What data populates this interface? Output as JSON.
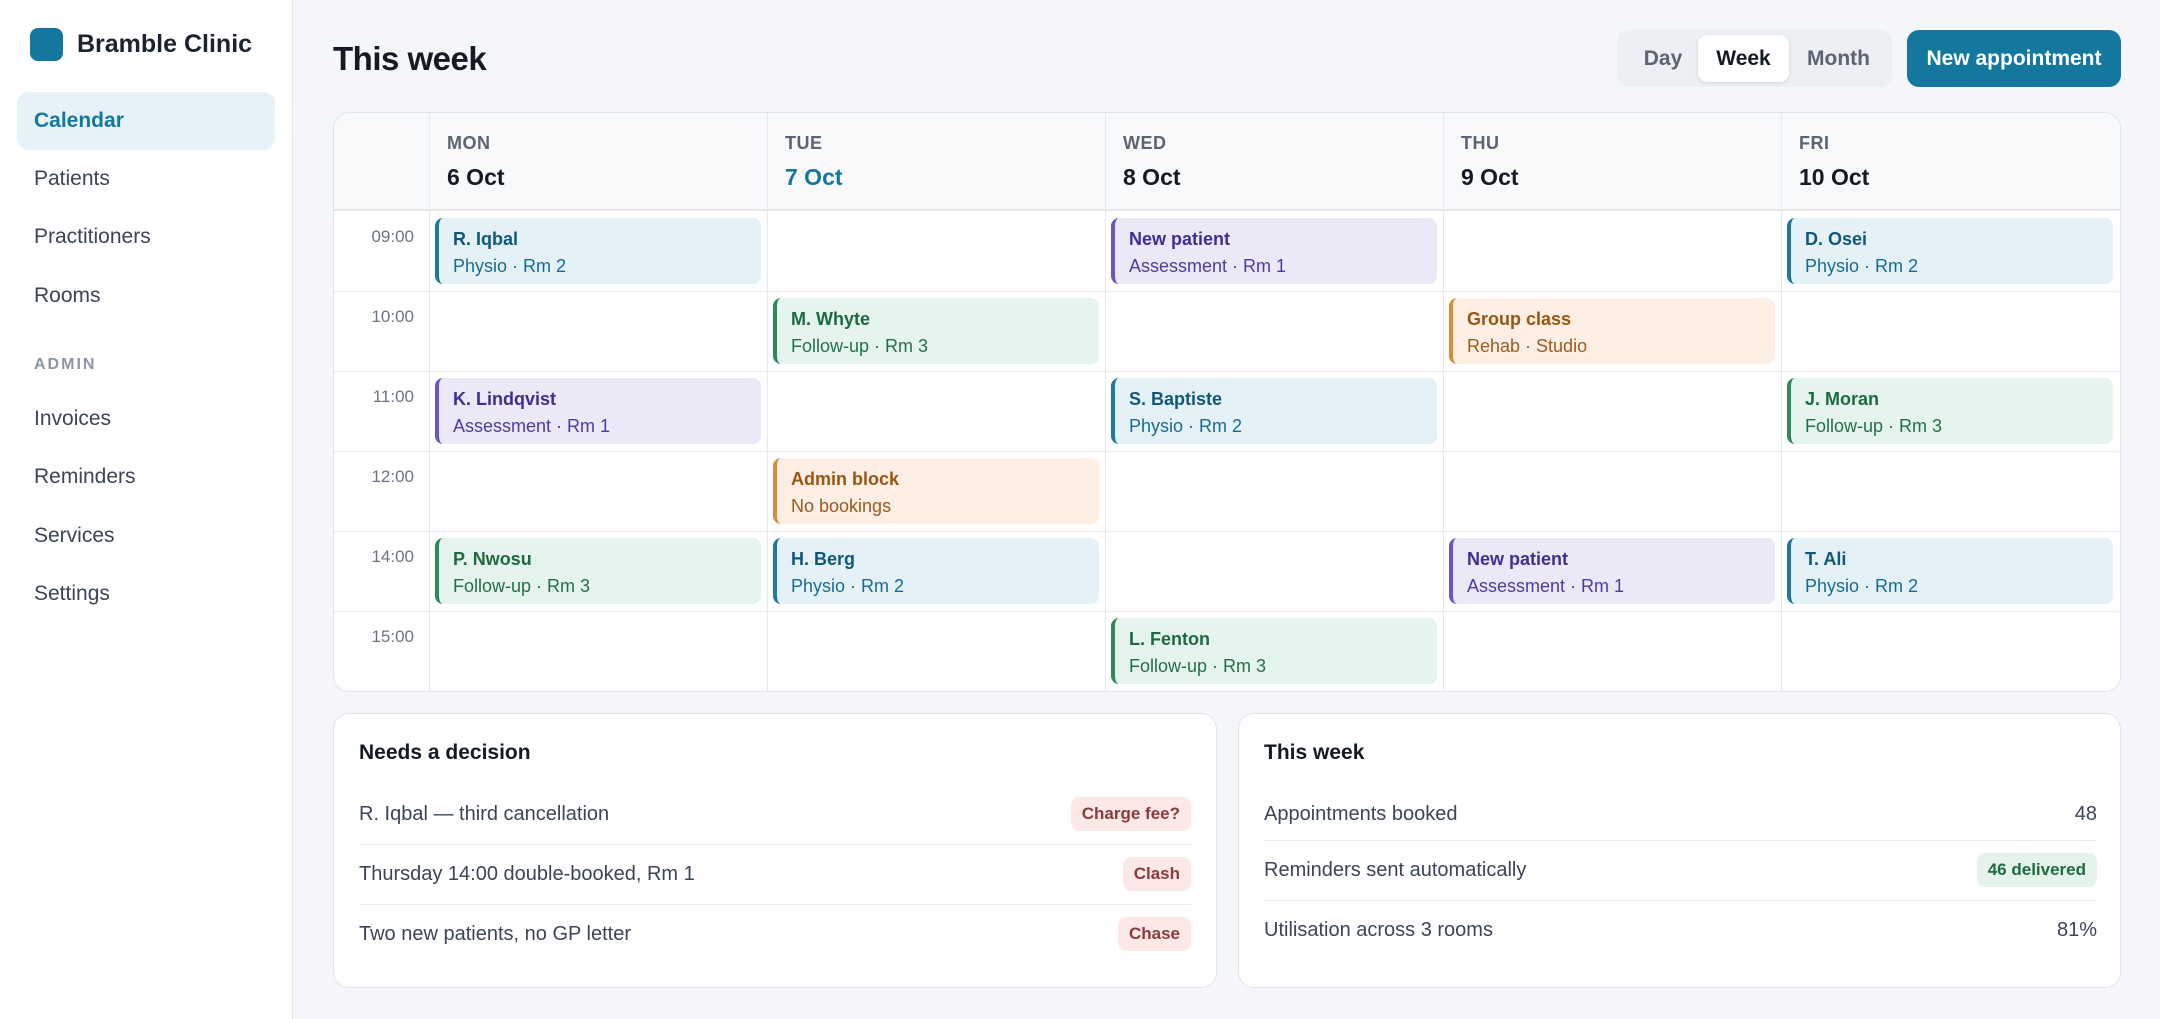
{
  "brand": {
    "name": "Bramble Clinic",
    "color": "#14789e"
  },
  "nav": {
    "main": [
      {
        "label": "Calendar",
        "active": true
      },
      {
        "label": "Patients"
      },
      {
        "label": "Practitioners"
      },
      {
        "label": "Rooms"
      }
    ],
    "admin_label": "ADMIN",
    "admin": [
      {
        "label": "Invoices"
      },
      {
        "label": "Reminders"
      },
      {
        "label": "Services"
      },
      {
        "label": "Settings"
      }
    ]
  },
  "header": {
    "title": "This week",
    "view_options": [
      "Day",
      "Week",
      "Month"
    ],
    "selected_view": "Week",
    "new_button": "New appointment"
  },
  "calendar": {
    "days": [
      {
        "dow": "MON",
        "date": "6 Oct"
      },
      {
        "dow": "TUE",
        "date": "7 Oct",
        "today": true
      },
      {
        "dow": "WED",
        "date": "8 Oct"
      },
      {
        "dow": "THU",
        "date": "9 Oct"
      },
      {
        "dow": "FRI",
        "date": "10 Oct"
      }
    ],
    "times": [
      "09:00",
      "10:00",
      "11:00",
      "12:00",
      "14:00",
      "15:00"
    ],
    "appointments": [
      {
        "day": 0,
        "slot": 0,
        "title": "R. Iqbal",
        "detail": "Physio · Rm 2",
        "color": "blue"
      },
      {
        "day": 2,
        "slot": 0,
        "title": "New patient",
        "detail": "Assessment · Rm 1",
        "color": "purple"
      },
      {
        "day": 4,
        "slot": 0,
        "title": "D. Osei",
        "detail": "Physio · Rm 2",
        "color": "blue"
      },
      {
        "day": 1,
        "slot": 1,
        "title": "M. Whyte",
        "detail": "Follow-up · Rm 3",
        "color": "green"
      },
      {
        "day": 3,
        "slot": 1,
        "title": "Group class",
        "detail": "Rehab · Studio",
        "color": "orange"
      },
      {
        "day": 0,
        "slot": 2,
        "title": "K. Lindqvist",
        "detail": "Assessment · Rm 1",
        "color": "purple"
      },
      {
        "day": 2,
        "slot": 2,
        "title": "S. Baptiste",
        "detail": "Physio · Rm 2",
        "color": "blue"
      },
      {
        "day": 4,
        "slot": 2,
        "title": "J. Moran",
        "detail": "Follow-up · Rm 3",
        "color": "green"
      },
      {
        "day": 1,
        "slot": 3,
        "title": "Admin block",
        "detail": "No bookings",
        "color": "orange"
      },
      {
        "day": 0,
        "slot": 4,
        "title": "P. Nwosu",
        "detail": "Follow-up · Rm 3",
        "color": "green"
      },
      {
        "day": 1,
        "slot": 4,
        "title": "H. Berg",
        "detail": "Physio · Rm 2",
        "color": "blue"
      },
      {
        "day": 3,
        "slot": 4,
        "title": "New patient",
        "detail": "Assessment · Rm 1",
        "color": "purple"
      },
      {
        "day": 4,
        "slot": 4,
        "title": "T. Ali",
        "detail": "Physio · Rm 2",
        "color": "blue"
      },
      {
        "day": 2,
        "slot": 5,
        "title": "L. Fenton",
        "detail": "Follow-up · Rm 3",
        "color": "green"
      }
    ]
  },
  "decisions": {
    "title": "Needs a decision",
    "items": [
      {
        "text": "R. Iqbal — third cancellation",
        "action": "Charge fee?"
      },
      {
        "text": "Thursday 14:00 double-booked, Rm 1",
        "action": "Clash"
      },
      {
        "text": "Two new patients, no GP letter",
        "action": "Chase"
      }
    ]
  },
  "summary": {
    "title": "This week",
    "items": [
      {
        "label": "Appointments booked",
        "value": "48"
      },
      {
        "label": "Reminders sent automatically",
        "badge": "46 delivered"
      },
      {
        "label": "Utilisation across 3 rooms",
        "value": "81%"
      }
    ]
  }
}
